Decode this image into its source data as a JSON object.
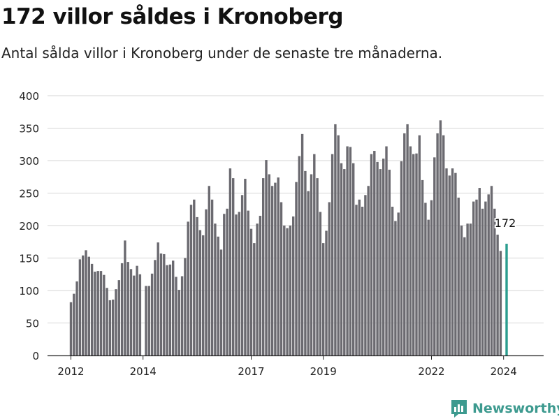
{
  "title": "172 villor såldes i Kronoberg",
  "subtitle": "Antal sålda villor i Kronoberg under de senaste tre månaderna.",
  "brand": {
    "name": "Newsworthy",
    "icon": "newsworthy-logo-icon",
    "color": "#3d9a8f"
  },
  "chart_data": {
    "type": "bar",
    "title": "",
    "xlabel": "",
    "ylabel": "",
    "ylim": [
      0,
      400
    ],
    "yticks": [
      0,
      50,
      100,
      150,
      200,
      250,
      300,
      350,
      400
    ],
    "grid": true,
    "start": "2012-01",
    "xtick_labels": [
      {
        "label": "2012",
        "index": 0
      },
      {
        "label": "2014",
        "index": 24
      },
      {
        "label": "2017",
        "index": 60
      },
      {
        "label": "2019",
        "index": 84
      },
      {
        "label": "2022",
        "index": 120
      },
      {
        "label": "2024",
        "index": 144
      }
    ],
    "bar_color": "#6b6a70",
    "highlight_color": "#2a9d8f",
    "highlight_index": 145,
    "highlight_label": "172",
    "values": [
      82,
      95,
      114,
      148,
      154,
      162,
      152,
      141,
      129,
      130,
      130,
      124,
      104,
      85,
      86,
      102,
      116,
      142,
      177,
      144,
      133,
      123,
      138,
      125,
      0,
      107,
      107,
      126,
      147,
      174,
      157,
      156,
      139,
      140,
      146,
      121,
      101,
      122,
      150,
      206,
      232,
      240,
      213,
      193,
      185,
      225,
      261,
      240,
      203,
      183,
      163,
      218,
      226,
      288,
      273,
      217,
      221,
      247,
      272,
      223,
      195,
      173,
      203,
      215,
      273,
      301,
      279,
      261,
      266,
      274,
      236,
      200,
      196,
      200,
      214,
      267,
      307,
      341,
      284,
      253,
      279,
      310,
      273,
      221,
      173,
      192,
      236,
      310,
      356,
      339,
      296,
      287,
      322,
      321,
      296,
      232,
      240,
      229,
      247,
      261,
      310,
      315,
      298,
      287,
      303,
      322,
      286,
      229,
      207,
      220,
      299,
      342,
      356,
      322,
      310,
      311,
      339,
      270,
      235,
      209,
      239,
      305,
      342,
      362,
      339,
      288,
      277,
      288,
      281,
      243,
      200,
      182,
      203,
      203,
      237,
      240,
      258,
      226,
      237,
      248,
      261,
      226,
      186,
      161,
      0,
      172
    ]
  }
}
